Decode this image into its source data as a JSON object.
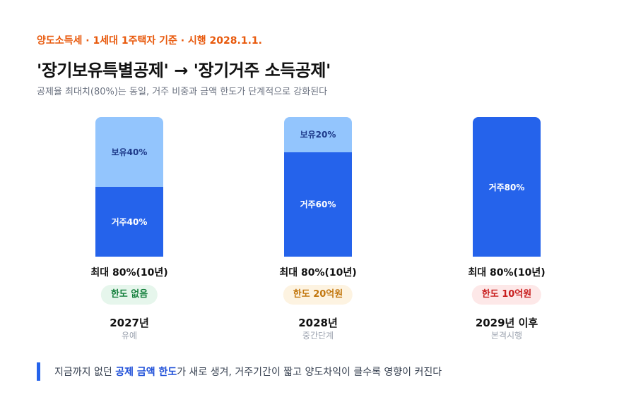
{
  "header": {
    "kicker": "양도소득세 · 1세대 1주택자 기준 · 시행 2028.1.1.",
    "title": "'장기보유특별공제' → '장기거주 소득공제'",
    "subtitle": "공제율 최대치(80%)는 동일, 거주 비중과 금액 한도가 단계적으로 강화된다"
  },
  "chart_data": {
    "type": "bar",
    "stacked": true,
    "unit": "%",
    "ylim": [
      0,
      80
    ],
    "categories": [
      "2027년",
      "2028년",
      "2029년 이후"
    ],
    "series": [
      {
        "name": "보유",
        "values": [
          40,
          20,
          0
        ]
      },
      {
        "name": "거주",
        "values": [
          40,
          60,
          80
        ]
      }
    ],
    "columns": [
      {
        "year": "2027년",
        "phase": "유예",
        "max": "최대 80%(10년)",
        "cap": "한도 없음",
        "cap_style": "green",
        "segments": [
          {
            "label": "보유40%",
            "kind": "hold",
            "value": 40
          },
          {
            "label": "거주40%",
            "kind": "res",
            "value": 40
          }
        ]
      },
      {
        "year": "2028년",
        "phase": "중간단계",
        "max": "최대 80%(10년)",
        "cap": "한도 20억원",
        "cap_style": "amber",
        "segments": [
          {
            "label": "보유20%",
            "kind": "hold",
            "value": 20
          },
          {
            "label": "거주60%",
            "kind": "res",
            "value": 60
          }
        ]
      },
      {
        "year": "2029년 이후",
        "phase": "본격시행",
        "max": "최대 80%(10년)",
        "cap": "한도 10억원",
        "cap_style": "red",
        "segments": [
          {
            "label": "거주80%",
            "kind": "res",
            "value": 80
          }
        ]
      }
    ],
    "colors": {
      "hold": "#93c5fd",
      "res": "#2563eb"
    }
  },
  "footer": {
    "text_before": "지금까지 없던 ",
    "highlight": "공제 금액 한도",
    "text_after": "가 새로 생겨, 거주기간이 짧고 양도차익이 클수록 영향이 커진다"
  }
}
